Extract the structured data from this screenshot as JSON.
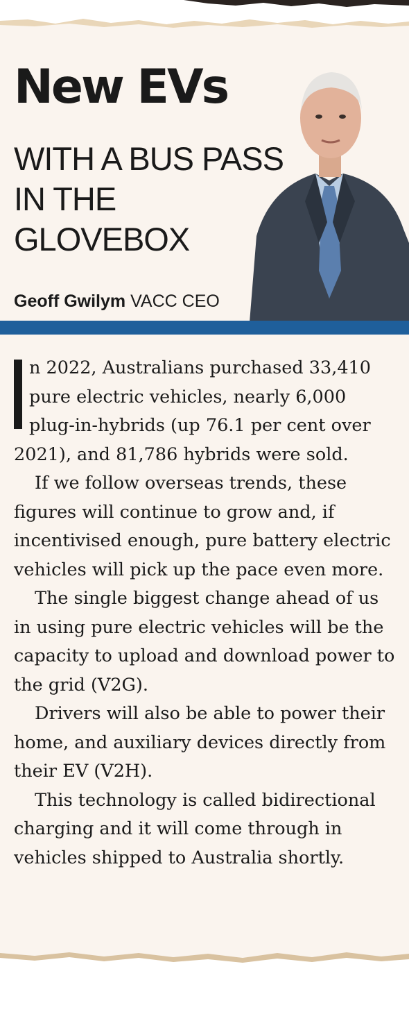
{
  "article": {
    "title": "New EVs",
    "subtitle": "WITH A BUS PASS IN THE GLOVEBOX",
    "byline": {
      "name": "Geoff Gwilym",
      "role": "VACC CEO"
    },
    "dropcap": "I",
    "first_paragraph": "n 2022, Australians purchased 33,410 pure electric vehicles, nearly 6,000 plug-in-hybrids (up 76.1 per cent over 2021), and 81,786 hybrids were sold.",
    "paragraphs": [
      "If we follow overseas trends, these figures will continue to grow and, if incentivised enough, pure battery electric vehicles will pick up the pace even more.",
      "The single biggest change ahead of us in using pure electric vehicles will be the capacity to upload and download power to the grid (V2G).",
      "Drivers will also be able to power their home, and auxiliary devices directly from their EV (V2H).",
      "This technology is called bidirectional charging and it will come through in vehicles shipped to Australia shortly."
    ]
  },
  "colors": {
    "paper": "#faf4ee",
    "rule": "#1f5f9b",
    "text": "#1a1a1a"
  }
}
